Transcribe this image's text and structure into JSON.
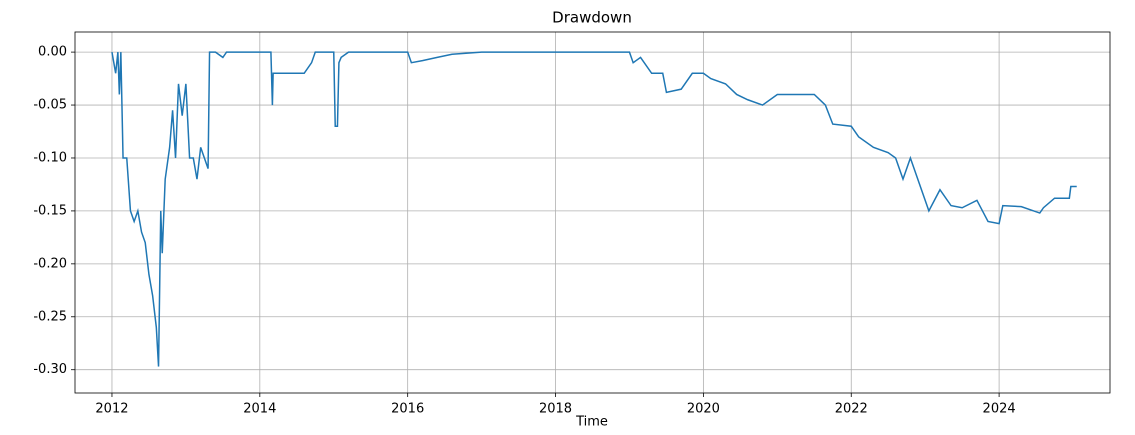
{
  "chart_data": {
    "type": "line",
    "title": "Drawdown",
    "x_label": "Time",
    "color": "#1f77b4",
    "grid": true,
    "x": [
      2012.0,
      2012.05,
      2012.08,
      2012.1,
      2012.12,
      2012.15,
      2012.2,
      2012.25,
      2012.3,
      2012.35,
      2012.4,
      2012.45,
      2012.5,
      2012.55,
      2012.6,
      2012.63,
      2012.66,
      2012.68,
      2012.72,
      2012.78,
      2012.82,
      2012.86,
      2012.9,
      2012.95,
      2013.0,
      2013.05,
      2013.1,
      2013.15,
      2013.2,
      2013.25,
      2013.3,
      2013.32,
      2013.4,
      2013.5,
      2013.55,
      2014.15,
      2014.17,
      2014.18,
      2014.5,
      2014.6,
      2014.7,
      2014.75,
      2015.0,
      2015.02,
      2015.05,
      2015.07,
      2015.1,
      2015.2,
      2016.0,
      2016.05,
      2016.2,
      2016.4,
      2016.6,
      2017.0,
      2019.0,
      2019.05,
      2019.15,
      2019.3,
      2019.45,
      2019.5,
      2019.7,
      2019.85,
      2020.0,
      2020.1,
      2020.3,
      2020.45,
      2020.6,
      2020.8,
      2021.0,
      2021.5,
      2021.65,
      2021.75,
      2022.0,
      2022.1,
      2022.3,
      2022.5,
      2022.6,
      2022.7,
      2022.8,
      2022.95,
      2023.05,
      2023.2,
      2023.35,
      2023.5,
      2023.7,
      2023.85,
      2024.0,
      2024.05,
      2024.3,
      2024.55,
      2024.6,
      2024.75,
      2024.95,
      2024.97,
      2025.05
    ],
    "values": [
      0,
      -0.02,
      0,
      -0.04,
      0,
      -0.1,
      -0.1,
      -0.15,
      -0.16,
      -0.15,
      -0.17,
      -0.18,
      -0.21,
      -0.23,
      -0.26,
      -0.297,
      -0.15,
      -0.19,
      -0.12,
      -0.09,
      -0.055,
      -0.1,
      -0.03,
      -0.06,
      -0.03,
      -0.1,
      -0.1,
      -0.12,
      -0.09,
      -0.1,
      -0.11,
      0,
      0,
      -0.005,
      0,
      0,
      -0.05,
      -0.02,
      -0.02,
      -0.02,
      -0.01,
      0,
      0,
      -0.07,
      -0.07,
      -0.01,
      -0.005,
      0,
      0,
      -0.01,
      -0.008,
      -0.005,
      -0.002,
      0,
      0,
      -0.01,
      -0.005,
      -0.02,
      -0.02,
      -0.038,
      -0.035,
      -0.02,
      -0.02,
      -0.025,
      -0.03,
      -0.04,
      -0.045,
      -0.05,
      -0.04,
      -0.04,
      -0.05,
      -0.068,
      -0.07,
      -0.08,
      -0.09,
      -0.095,
      -0.1,
      -0.12,
      -0.1,
      -0.13,
      -0.15,
      -0.13,
      -0.145,
      -0.147,
      -0.14,
      -0.16,
      -0.162,
      -0.145,
      -0.146,
      -0.152,
      -0.147,
      -0.138,
      -0.138,
      -0.127,
      -0.127
    ],
    "xlim": [
      2011.5,
      2025.5
    ],
    "xticks": [
      2012,
      2014,
      2016,
      2018,
      2020,
      2022,
      2024
    ],
    "ylim": [
      -0.322,
      0.019
    ],
    "yticks": [
      {
        "value": 0,
        "label": "0.00"
      },
      {
        "value": -0.05,
        "label": "-0.05"
      },
      {
        "value": -0.1,
        "label": "-0.10"
      },
      {
        "value": -0.15,
        "label": "-0.15"
      },
      {
        "value": -0.2,
        "label": "-0.20"
      },
      {
        "value": -0.25,
        "label": "-0.25"
      },
      {
        "value": -0.3,
        "label": "-0.30"
      }
    ]
  }
}
